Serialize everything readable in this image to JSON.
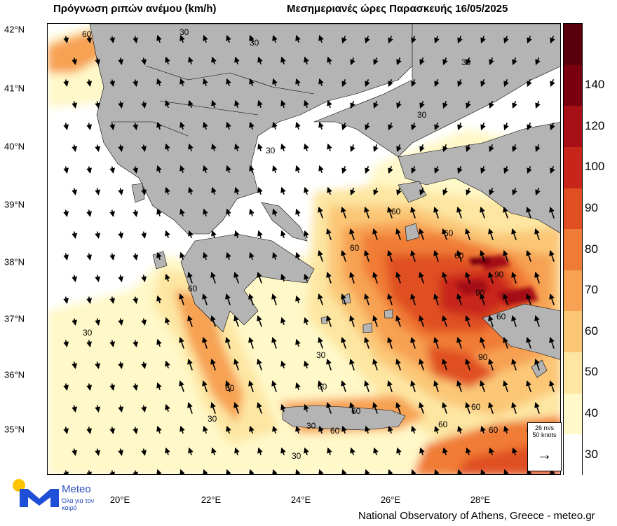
{
  "header": {
    "title_left": "Πρόγνωση ριπών ανέμου (km/h)",
    "title_right": "Μεσημεριανές ώρες Παρασκευής 16/05/2025"
  },
  "axes": {
    "lat_labels": [
      "42°N",
      "41°N",
      "40°N",
      "39°N",
      "38°N",
      "37°N",
      "36°N",
      "35°N"
    ],
    "lon_labels": [
      "20°E",
      "22°E",
      "24°E",
      "26°E",
      "28°E"
    ]
  },
  "colorbar": {
    "levels": [
      "30",
      "40",
      "50",
      "60",
      "70",
      "80",
      "90",
      "100",
      "120",
      "140"
    ],
    "colors": [
      "#ffffff",
      "#fff8c8",
      "#fde6a2",
      "#fbc777",
      "#f7a252",
      "#f07b36",
      "#e04f22",
      "#c8261a",
      "#a50f15",
      "#7a0010",
      "#5a000c"
    ]
  },
  "wind_key": {
    "speed": "26 m/s",
    "knots": "50 knots",
    "arrow": "→"
  },
  "map_labels": {
    "contour_values": [
      "60",
      "30",
      "30",
      "30",
      "30",
      "30",
      "60",
      "60",
      "30",
      "60",
      "60",
      "90",
      "60",
      "90",
      "60",
      "30",
      "60",
      "60",
      "60",
      "30",
      "30",
      "60",
      "90",
      "60",
      "60",
      "60",
      "30"
    ]
  },
  "logo": {
    "name": "Meteo",
    "tagline": "Όλα για τον καιρό"
  },
  "footer": {
    "credit": "National Observatory of Athens, Greece - meteo.gr"
  },
  "colors": {
    "land": "#b4b4b4",
    "sea_calm": "#ffffff",
    "logo_blue": "#1f4fd6",
    "logo_yellow": "#ffc400"
  },
  "icons": {
    "logo": "meteo-m-logo"
  }
}
